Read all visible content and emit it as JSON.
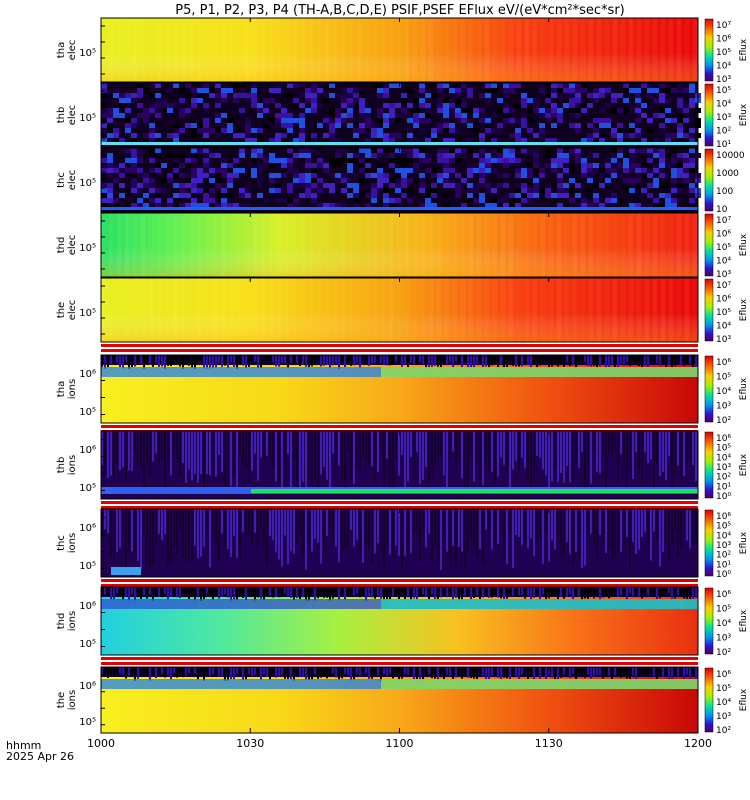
{
  "title": "P5, P1, P2, P3, P4 (TH-A,B,C,D,E) PSIF,PSEF EFlux eV/(eV*cm²*sec*sr)",
  "time_axis": {
    "label_line1": "hhmm",
    "label_line2": "2025 Apr 26",
    "ticks": [
      "1000",
      "1030",
      "1100",
      "1130",
      "1200"
    ]
  },
  "panels": [
    {
      "id": "tha-elec",
      "label1": "tha",
      "label2": "elec",
      "ytick": "10⁵",
      "kind": "elec_full",
      "cbar": {
        "title": "Eflux",
        "labels": [
          "10⁷",
          "10⁶",
          "10⁵",
          "10⁴",
          "10³"
        ]
      }
    },
    {
      "id": "thb-elec",
      "label1": "thb",
      "label2": "elec",
      "ytick": "10⁵",
      "kind": "elec_noise",
      "cbar": {
        "title": "Eflux",
        "labels": [
          "10⁵",
          "10⁴",
          "10³",
          "10²",
          "10¹"
        ]
      }
    },
    {
      "id": "thc-elec",
      "label1": "thc",
      "label2": "elec",
      "ytick": "10⁵",
      "kind": "elec_noise",
      "cbar": {
        "title": "",
        "labels": [
          "10000",
          "1000",
          "100",
          "10"
        ]
      }
    },
    {
      "id": "thd-elec",
      "label1": "thd",
      "label2": "elec",
      "ytick": "10⁵",
      "kind": "elec_full2",
      "cbar": {
        "title": "Eflux",
        "labels": [
          "10⁷",
          "10⁶",
          "10⁵",
          "10⁴",
          "10³"
        ]
      }
    },
    {
      "id": "the-elec",
      "label1": "the",
      "label2": "elec",
      "ytick": "10⁵",
      "kind": "elec_full",
      "cbar": {
        "title": "Eflux",
        "labels": [
          "10⁷",
          "10⁶",
          "10⁵",
          "10⁴",
          "10³"
        ]
      }
    },
    {
      "id": "tha-ions",
      "label1": "tha",
      "label2": "ions",
      "ytick": "10⁵",
      "ytick2": "10⁶",
      "kind": "ion_full",
      "cbar": {
        "title": "Eflux",
        "labels": [
          "10⁶",
          "10⁵",
          "10⁴",
          "10³",
          "10²"
        ]
      }
    },
    {
      "id": "thb-ions",
      "label1": "thb",
      "label2": "ions",
      "ytick": "10⁵",
      "ytick2": "10⁶",
      "kind": "ion_noise",
      "cbar": {
        "title": "Eflux",
        "labels": [
          "10⁶",
          "10⁵",
          "10⁴",
          "10³",
          "10²",
          "10¹",
          "10⁰"
        ]
      }
    },
    {
      "id": "thc-ions",
      "label1": "thc",
      "label2": "ions",
      "ytick": "10⁵",
      "ytick2": "10⁶",
      "kind": "ion_noise2",
      "cbar": {
        "title": "Eflux",
        "labels": [
          "10⁶",
          "10⁵",
          "10⁴",
          "10³",
          "10²",
          "10¹",
          "10⁰"
        ]
      }
    },
    {
      "id": "thd-ions",
      "label1": "thd",
      "label2": "ions",
      "ytick": "10⁵",
      "ytick2": "10⁶",
      "kind": "ion_mid",
      "cbar": {
        "title": "Eflux",
        "labels": [
          "10⁶",
          "10⁵",
          "10⁴",
          "10³",
          "10²"
        ]
      }
    },
    {
      "id": "the-ions",
      "label1": "the",
      "label2": "ions",
      "ytick": "10⁵",
      "ytick2": "10⁶",
      "kind": "ion_full",
      "cbar": {
        "title": "Eflux",
        "labels": [
          "10⁶",
          "10⁵",
          "10⁴",
          "10³",
          "10²"
        ]
      }
    }
  ],
  "chart_data": {
    "type": "heatmap",
    "title": "P5, P1, P2, P3, P4 (TH-A,B,C,D,E) PSIF,PSEF EFlux eV/(eV*cm²*sec*sr)",
    "x_ticks": [
      "1000",
      "1030",
      "1100",
      "1130",
      "1200"
    ],
    "x_label": "hhmm",
    "date": "2025 Apr 26",
    "colormap": "rainbow (purple-blue-cyan-green-yellow-red)",
    "series_count": 10
  }
}
